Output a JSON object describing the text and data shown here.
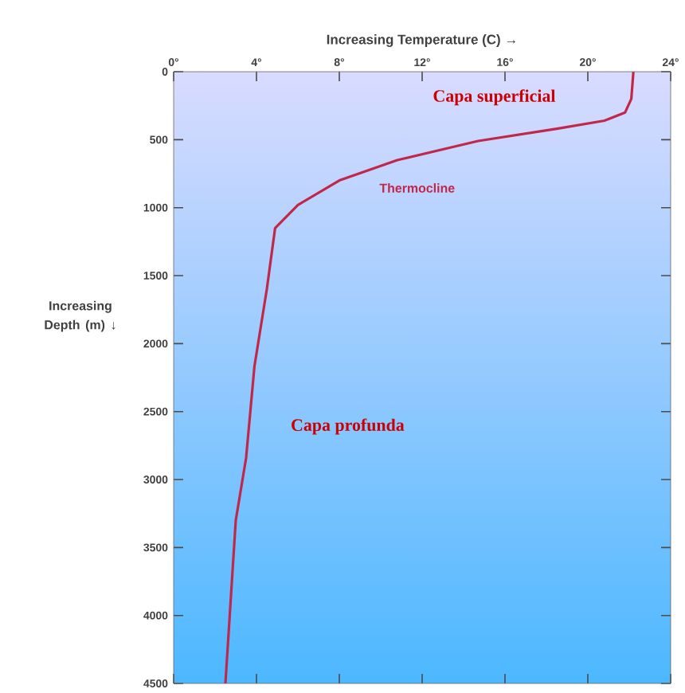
{
  "chart_data": {
    "type": "line",
    "xlabel": "Increasing Temperature (C) →",
    "ylabel": "Increasing Depth (m) ↓",
    "series": [
      {
        "color": "#c0284a",
        "x": [
          22.2,
          22.1,
          21.8,
          20.8,
          18.5,
          14.7,
          10.8,
          8.0,
          6.0,
          4.9,
          4.5,
          3.9,
          3.5,
          3.0,
          2.5
        ],
        "values": [
          0,
          200,
          300,
          360,
          420,
          510,
          650,
          800,
          980,
          1150,
          1600,
          2170,
          2840,
          3300,
          4500
        ]
      }
    ],
    "xlim": [
      0,
      24
    ],
    "xticks": [
      {
        "value": 0,
        "label": "0°"
      },
      {
        "value": 4,
        "label": "4°"
      },
      {
        "value": 8,
        "label": "8°"
      },
      {
        "value": 12,
        "label": "12°"
      },
      {
        "value": 16,
        "label": "16°"
      },
      {
        "value": 20,
        "label": "20°"
      },
      {
        "value": 24,
        "label": "24°"
      }
    ],
    "ylim": [
      4500,
      0
    ],
    "yticks": [
      0,
      500,
      1000,
      1500,
      2000,
      2500,
      3000,
      3500,
      4000,
      4500
    ],
    "annotations": [
      "Capa superficial",
      "Thermocline",
      "Capa profunda"
    ],
    "grid": false,
    "legend": false,
    "marker": "none",
    "line_style": "solid"
  }
}
